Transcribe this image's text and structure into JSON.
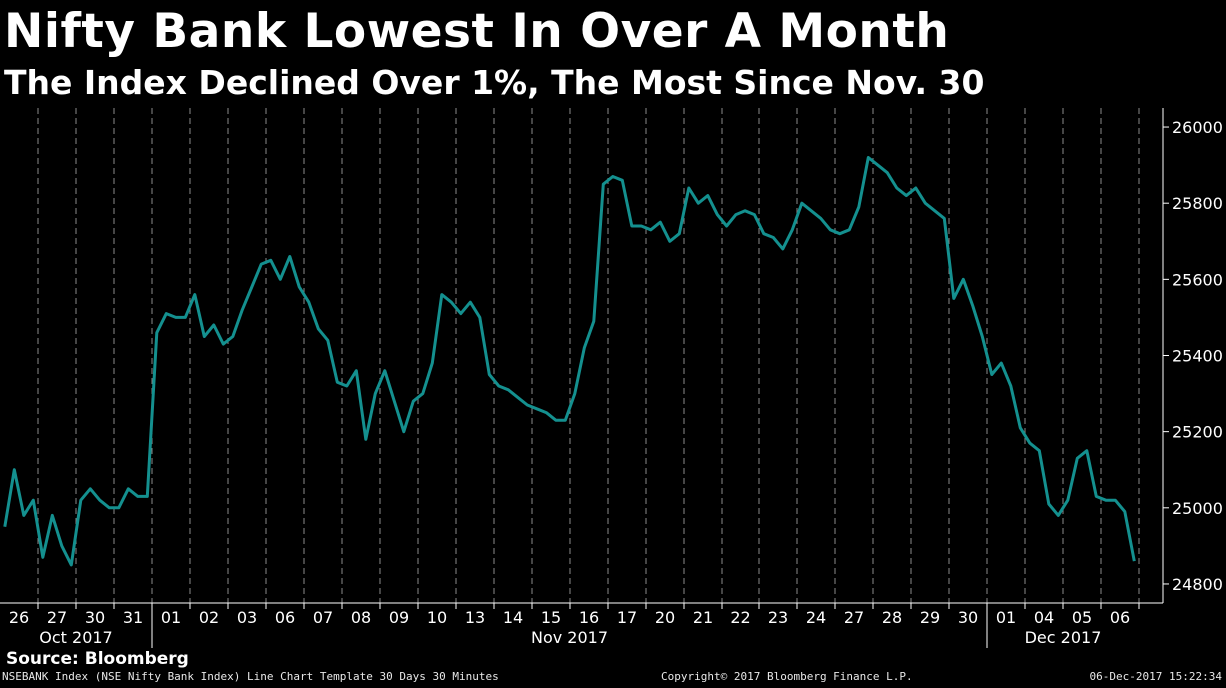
{
  "title": "Nifty Bank Lowest In Over A Month",
  "subtitle": "The Index Declined Over 1%, The Most Since Nov. 30",
  "source": "Source: Bloomberg",
  "footer": {
    "left": "NSEBANK Index (NSE Nifty Bank Index) Line Chart Template 30 Days 30 Minutes",
    "middle": "Copyright© 2017 Bloomberg Finance L.P.",
    "right": "06-Dec-2017 15:22:34"
  },
  "colors": {
    "line": "#14908f",
    "background": "#000000",
    "grid": "#8a8a8a",
    "text": "#ffffff"
  },
  "chart_data": {
    "type": "line",
    "title": "Nifty Bank Lowest In Over A Month",
    "subtitle": "The Index Declined Over 1%, The Most Since Nov. 30",
    "ylim": [
      24750,
      26050
    ],
    "yticks": [
      24800,
      25000,
      25200,
      25400,
      25600,
      25800,
      26000
    ],
    "y_axis_side": "right",
    "grid": "vertical dashed at day boundaries",
    "days": [
      "26",
      "27",
      "30",
      "31",
      "01",
      "02",
      "03",
      "06",
      "07",
      "08",
      "09",
      "10",
      "13",
      "14",
      "15",
      "16",
      "17",
      "20",
      "21",
      "22",
      "23",
      "24",
      "27",
      "28",
      "29",
      "30",
      "01",
      "04",
      "05",
      "06"
    ],
    "months": [
      {
        "label": "Oct 2017",
        "start_day": 0,
        "end_day": 3
      },
      {
        "label": "Nov 2017",
        "start_day": 4,
        "end_day": 25
      },
      {
        "label": "Dec 2017",
        "start_day": 26,
        "end_day": 29
      }
    ],
    "series": [
      {
        "points_per_day": [
          [
            24950,
            25100,
            24980,
            25020
          ],
          [
            24870,
            24980,
            24900,
            24850
          ],
          [
            25020,
            25050,
            25020,
            25000
          ],
          [
            25000,
            25050,
            25030,
            25030
          ],
          [
            25460,
            25510,
            25500,
            25500
          ],
          [
            25560,
            25450,
            25480,
            25430
          ],
          [
            25450,
            25520,
            25580,
            25640
          ],
          [
            25650,
            25600,
            25660,
            25580
          ],
          [
            25540,
            25470,
            25440,
            25330
          ],
          [
            25320,
            25360,
            25180,
            25300
          ],
          [
            25360,
            25280,
            25200,
            25280
          ],
          [
            25300,
            25380,
            25560,
            25540
          ],
          [
            25510,
            25540,
            25500,
            25350
          ],
          [
            25320,
            25310,
            25290,
            25270
          ],
          [
            25260,
            25250,
            25230,
            25230
          ],
          [
            25300,
            25420,
            25490,
            25850
          ],
          [
            25870,
            25860,
            25740,
            25740
          ],
          [
            25730,
            25750,
            25700,
            25720
          ],
          [
            25840,
            25800,
            25820,
            25770
          ],
          [
            25740,
            25770,
            25780,
            25770
          ],
          [
            25720,
            25710,
            25680,
            25730
          ],
          [
            25800,
            25780,
            25760,
            25730
          ],
          [
            25720,
            25730,
            25790,
            25920
          ],
          [
            25900,
            25880,
            25840,
            25820
          ],
          [
            25840,
            25800,
            25780,
            25760
          ],
          [
            25550,
            25600,
            25530,
            25450
          ],
          [
            25350,
            25380,
            25320,
            25210
          ],
          [
            25170,
            25150,
            25010,
            24980
          ],
          [
            25020,
            25130,
            25150,
            25030
          ],
          [
            25020,
            25020,
            24990,
            24860
          ]
        ]
      }
    ]
  }
}
